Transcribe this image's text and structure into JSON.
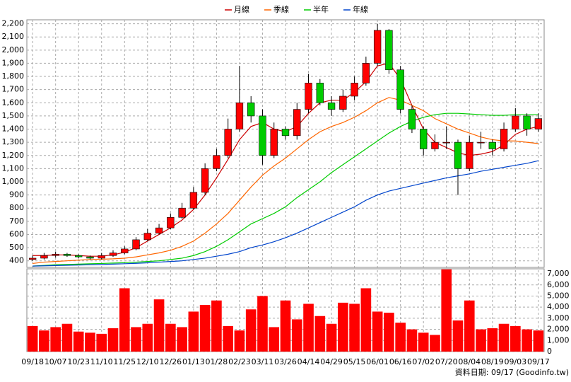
{
  "chart_data": {
    "type": "candlestick",
    "legend": [
      "月線",
      "季線",
      "半年",
      "年線"
    ],
    "footer": "資料日期: 09/17  (Goodinfo.tw)",
    "categories": [
      "09/18",
      null,
      "10/07",
      null,
      "10/23",
      null,
      "11/10",
      null,
      "11/25",
      null,
      "12/10",
      null,
      "12/26",
      null,
      "01/13",
      null,
      "01/28",
      null,
      "02/23",
      null,
      "03/11",
      null,
      "03/26",
      null,
      "04/14",
      null,
      "04/29",
      null,
      "05/15",
      null,
      "06/01",
      null,
      "06/16",
      null,
      "07/02",
      null,
      "07/20",
      null,
      "08/04",
      null,
      "08/19",
      null,
      "09/03",
      null,
      "09/17"
    ],
    "up_color": "#ff0000",
    "down_color": "#00cc00",
    "volume_color": "#ff0000",
    "open": [
      410,
      420,
      440,
      450,
      440,
      430,
      420,
      440,
      460,
      490,
      560,
      610,
      650,
      730,
      800,
      920,
      1100,
      1200,
      1400,
      1600,
      1500,
      1200,
      1400,
      1350,
      1550,
      1750,
      1600,
      1550,
      1650,
      1750,
      1900,
      2150,
      1850,
      1550,
      1400,
      1250,
      1300,
      1300,
      1100,
      1300,
      1300,
      1250,
      1400,
      1500,
      1400
    ],
    "high": [
      440,
      460,
      470,
      460,
      450,
      440,
      460,
      480,
      510,
      580,
      640,
      680,
      760,
      840,
      960,
      1140,
      1250,
      1480,
      1880,
      1650,
      1550,
      1450,
      1420,
      1600,
      1820,
      1780,
      1650,
      1700,
      1800,
      1950,
      2200,
      2160,
      1880,
      1580,
      1420,
      1360,
      1420,
      1320,
      1350,
      1380,
      1320,
      1450,
      1560,
      1520,
      1520
    ],
    "low": [
      400,
      410,
      425,
      430,
      420,
      410,
      410,
      430,
      450,
      480,
      550,
      600,
      640,
      720,
      790,
      900,
      1080,
      1180,
      1380,
      1450,
      1130,
      1180,
      1320,
      1320,
      1520,
      1580,
      1500,
      1530,
      1620,
      1730,
      1880,
      1820,
      1520,
      1370,
      1200,
      1230,
      1250,
      900,
      1080,
      1250,
      1200,
      1230,
      1380,
      1350,
      1380
    ],
    "close": [
      420,
      440,
      450,
      440,
      430,
      420,
      440,
      460,
      490,
      560,
      610,
      650,
      730,
      800,
      920,
      1100,
      1200,
      1400,
      1600,
      1500,
      1200,
      1400,
      1350,
      1550,
      1750,
      1600,
      1550,
      1650,
      1750,
      1900,
      2150,
      1850,
      1550,
      1400,
      1250,
      1300,
      1300,
      1100,
      1300,
      1300,
      1250,
      1400,
      1500,
      1400,
      1480
    ],
    "series": [
      {
        "name": "月線",
        "color": "#cc0000",
        "values": [
          440,
          440,
          445,
          445,
          440,
          435,
          435,
          445,
          465,
          500,
          550,
          600,
          650,
          710,
          790,
          900,
          1030,
          1170,
          1320,
          1420,
          1450,
          1400,
          1380,
          1420,
          1520,
          1600,
          1620,
          1620,
          1680,
          1760,
          1880,
          1900,
          1780,
          1580,
          1400,
          1300,
          1260,
          1220,
          1200,
          1210,
          1230,
          1280,
          1360,
          1400,
          1420
        ]
      },
      {
        "name": "季線",
        "color": "#ff6600",
        "values": [
          380,
          390,
          395,
          400,
          405,
          410,
          412,
          415,
          420,
          430,
          445,
          460,
          480,
          510,
          550,
          610,
          680,
          760,
          860,
          960,
          1050,
          1120,
          1180,
          1250,
          1320,
          1380,
          1420,
          1450,
          1490,
          1540,
          1600,
          1640,
          1620,
          1580,
          1540,
          1480,
          1440,
          1400,
          1370,
          1340,
          1320,
          1310,
          1310,
          1300,
          1290
        ]
      },
      {
        "name": "半年",
        "color": "#00cc00",
        "values": [
          360,
          365,
          370,
          372,
          375,
          378,
          380,
          383,
          386,
          390,
          395,
          400,
          410,
          420,
          440,
          470,
          510,
          560,
          620,
          680,
          720,
          760,
          810,
          880,
          940,
          1000,
          1070,
          1130,
          1190,
          1250,
          1310,
          1370,
          1420,
          1460,
          1490,
          1510,
          1520,
          1520,
          1515,
          1510,
          1505,
          1505,
          1510,
          1510,
          1510
        ]
      },
      {
        "name": "年線",
        "color": "#0044cc",
        "values": [
          360,
          362,
          364,
          366,
          368,
          370,
          372,
          375,
          378,
          381,
          385,
          390,
          395,
          400,
          410,
          420,
          435,
          450,
          470,
          500,
          520,
          545,
          575,
          610,
          650,
          690,
          730,
          770,
          810,
          860,
          900,
          930,
          950,
          970,
          990,
          1010,
          1030,
          1045,
          1060,
          1080,
          1095,
          1110,
          1125,
          1140,
          1160
        ]
      }
    ],
    "volume": [
      2300,
      1900,
      2200,
      2500,
      1800,
      1700,
      1600,
      2100,
      5700,
      2200,
      2500,
      4700,
      2500,
      2200,
      3600,
      4200,
      4600,
      2300,
      1900,
      3800,
      5000,
      2200,
      4600,
      2900,
      4300,
      3200,
      2500,
      4400,
      4300,
      5700,
      3600,
      3500,
      2600,
      2000,
      1700,
      1500,
      7400,
      2800,
      4600,
      2000,
      2100,
      2500,
      2300,
      2000,
      1900
    ],
    "ylim": [
      350,
      2230
    ],
    "yticks": [
      400,
      500,
      600,
      700,
      800,
      900,
      {
        "value": 1000,
        "label": "1,000"
      },
      {
        "value": 1100,
        "label": "1,100"
      },
      {
        "value": 1200,
        "label": "1,200"
      },
      {
        "value": 1300,
        "label": "1,300"
      },
      {
        "value": 1400,
        "label": "1,400"
      },
      {
        "value": 1500,
        "label": "1,500"
      },
      {
        "value": 1600,
        "label": "1,600"
      },
      {
        "value": 1700,
        "label": "1,700"
      },
      {
        "value": 1800,
        "label": "1,800"
      },
      {
        "value": 1900,
        "label": "1,900"
      },
      {
        "value": 2000,
        "label": "2,000"
      },
      {
        "value": 2100,
        "label": "2,100"
      },
      {
        "value": 2200,
        "label": "2,200"
      }
    ],
    "y2lim": [
      0,
      7450
    ],
    "y2ticks": [
      0,
      {
        "value": 1000,
        "label": "1,000"
      },
      {
        "value": 2000,
        "label": "2,000"
      },
      {
        "value": 3000,
        "label": "3,000"
      },
      {
        "value": 4000,
        "label": "4,000"
      },
      {
        "value": 5000,
        "label": "5,000"
      },
      {
        "value": 6000,
        "label": "6,000"
      },
      {
        "value": 7000,
        "label": "7,000"
      }
    ],
    "grid": true
  }
}
